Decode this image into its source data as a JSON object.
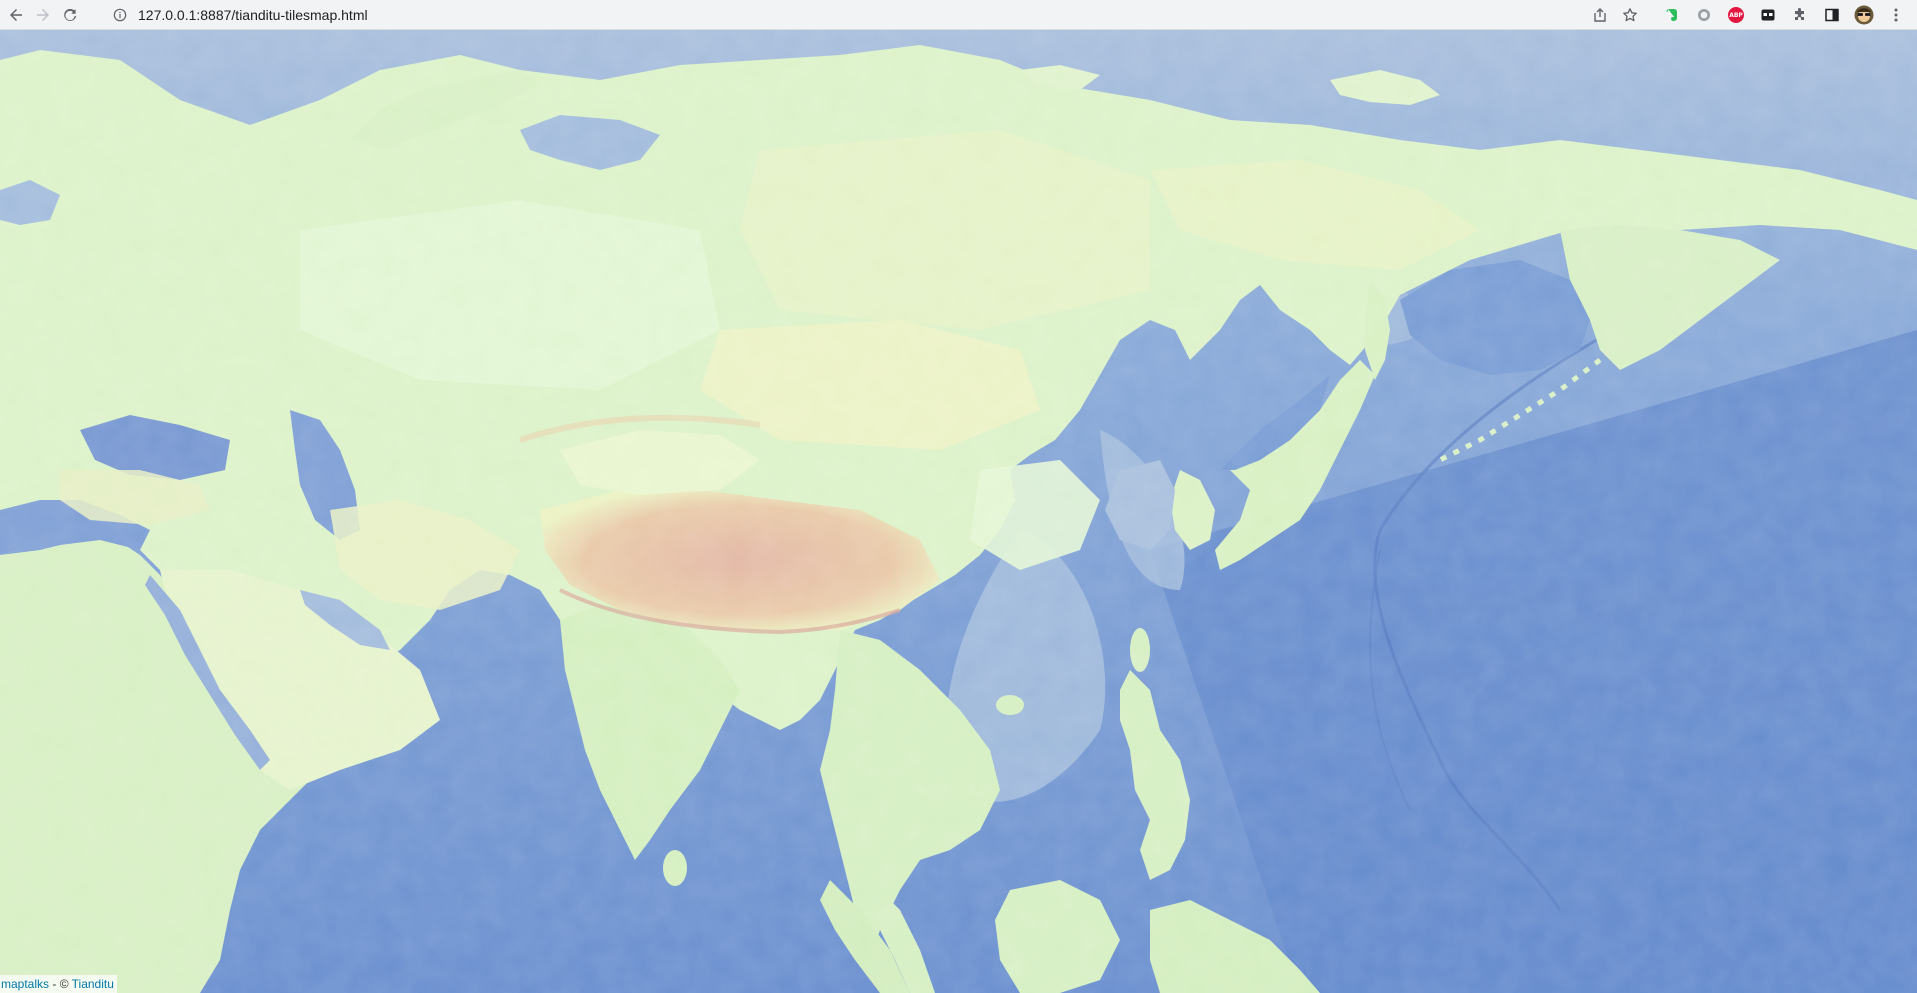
{
  "browser": {
    "url": "127.0.0.1:8887/tianditu-tilesmap.html",
    "nav_icons": [
      "back-arrow-icon",
      "forward-arrow-icon",
      "reload-icon"
    ],
    "toolbar_icons": [
      "share-icon",
      "bookmark-star-icon"
    ],
    "extensions": [
      "evernote-extension-icon",
      "circle-extension-icon",
      "adblock-plus-extension-icon",
      "media-extension-icon",
      "extensions-puzzle-icon",
      "side-panel-icon",
      "profile-avatar",
      "menu-kebab-icon"
    ],
    "abp_label": "ABP"
  },
  "map": {
    "colors": {
      "deep_ocean": "#6a8fcf",
      "ocean": "#7b9fd6",
      "shelf": "#a9c0dd",
      "lowland": "#d7f0c6",
      "plain": "#e2f5d2",
      "upland": "#ecf2c4",
      "highland": "#e9caa9",
      "peak": "#e3b8a6"
    }
  },
  "attribution": {
    "maptalks": "maptalks",
    "separator": " - © ",
    "tianditu": "Tianditu"
  }
}
